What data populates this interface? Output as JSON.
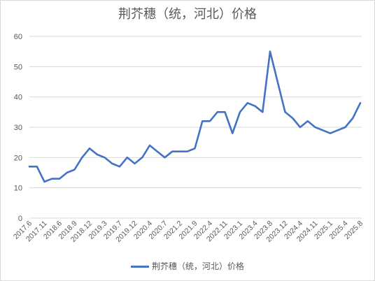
{
  "chart_data": {
    "type": "line",
    "title": "荆芥穗（统，河北）价格",
    "xlabel": "",
    "ylabel": "",
    "ylim": [
      0,
      60
    ],
    "yticks": [
      0,
      10,
      20,
      30,
      40,
      50,
      60
    ],
    "grid": true,
    "legend_position": "bottom",
    "color": "#4472c4",
    "x_tick_labels": [
      "2017.6",
      "2017.11",
      "2018.6",
      "2018.9",
      "2018.12",
      "2019.3",
      "2019.7",
      "2019.12",
      "2020.4",
      "2020.7",
      "2021.2",
      "2021.9",
      "2022.4",
      "2022.11",
      "2023.1",
      "2023.4",
      "2023.8",
      "2023.12",
      "2024.4",
      "2024.11",
      "2025.1",
      "2025.4",
      "2025.8"
    ],
    "series": [
      {
        "name": "荆芥穗（统，河北）价格",
        "values": [
          17,
          17,
          12,
          13,
          13,
          15,
          16,
          20,
          23,
          21,
          20,
          18,
          17,
          20,
          18,
          20,
          24,
          22,
          20,
          22,
          22,
          22,
          23,
          32,
          32,
          35,
          35,
          28,
          35,
          38,
          37,
          35,
          55,
          45,
          35,
          33,
          30,
          32,
          30,
          29,
          28,
          29,
          30,
          33,
          38
        ]
      }
    ]
  }
}
